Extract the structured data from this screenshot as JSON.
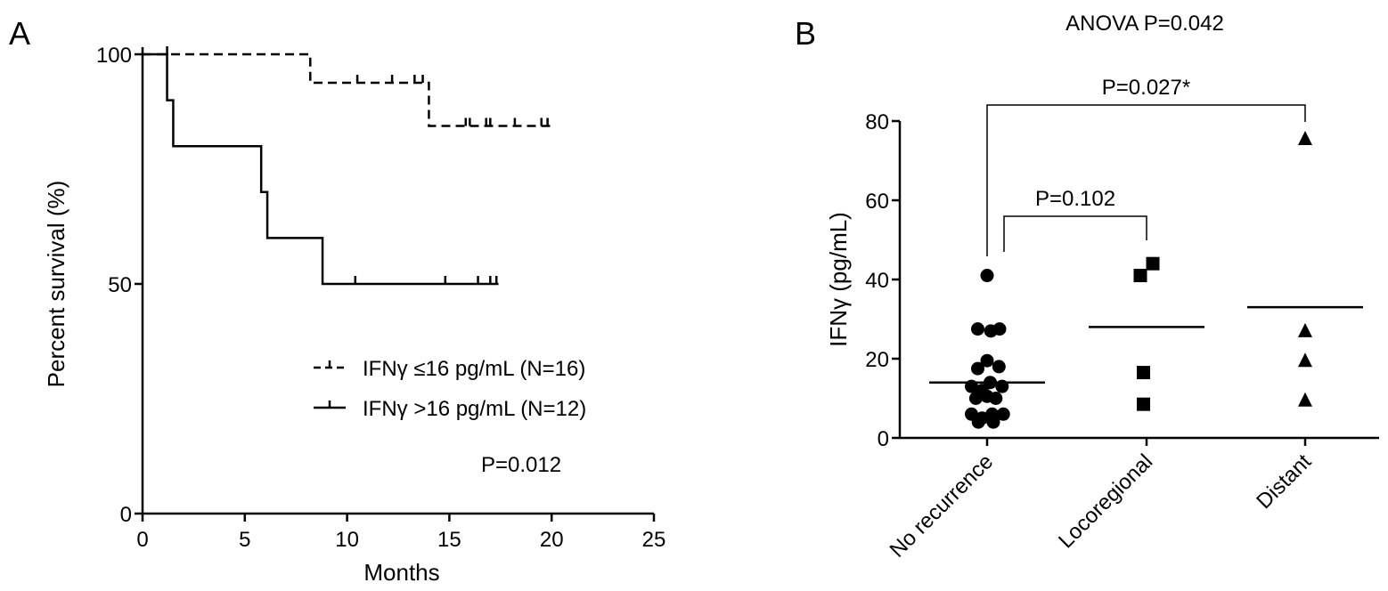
{
  "chart_data": [
    {
      "panel_label": "A",
      "type": "line",
      "xlabel": "Months",
      "ylabel": "Percent survival (%)",
      "xlim": [
        0,
        25
      ],
      "ylim": [
        0,
        100
      ],
      "xticks": [
        "0",
        "5",
        "10",
        "15",
        "20",
        "25"
      ],
      "yticks": [
        "0",
        "50",
        "100"
      ],
      "grid": false,
      "legend_position": "lower-right",
      "annotation": "P=0.012",
      "series": [
        {
          "name": "IFNγ ≤16 pg/mL (N=16)",
          "style": "dashed",
          "steps": [
            [
              0,
              100
            ],
            [
              8.2,
              100
            ],
            [
              8.2,
              93.8
            ],
            [
              14.0,
              93.8
            ],
            [
              14.0,
              84.4
            ],
            [
              20.0,
              84.4
            ]
          ],
          "censored": [
            [
              1.2,
              100
            ],
            [
              10.5,
              93.8
            ],
            [
              12.2,
              93.8
            ],
            [
              13.3,
              93.8
            ],
            [
              13.7,
              93.8
            ],
            [
              15.8,
              84.4
            ],
            [
              16.0,
              84.4
            ],
            [
              16.8,
              84.4
            ],
            [
              17.0,
              84.4
            ],
            [
              18.2,
              84.4
            ],
            [
              19.5,
              84.4
            ],
            [
              19.8,
              84.4
            ]
          ]
        },
        {
          "name": "IFNγ >16 pg/mL (N=12)",
          "style": "solid",
          "steps": [
            [
              0,
              100
            ],
            [
              1.2,
              100
            ],
            [
              1.2,
              90
            ],
            [
              1.5,
              90
            ],
            [
              1.5,
              80
            ],
            [
              5.8,
              80
            ],
            [
              5.8,
              70
            ],
            [
              6.1,
              70
            ],
            [
              6.1,
              60
            ],
            [
              8.8,
              60
            ],
            [
              8.8,
              50
            ],
            [
              17.4,
              50
            ]
          ],
          "censored": [
            [
              10.4,
              50
            ],
            [
              14.8,
              50
            ],
            [
              16.4,
              50
            ],
            [
              17.0,
              50
            ],
            [
              17.3,
              50
            ]
          ]
        }
      ]
    },
    {
      "panel_label": "B",
      "type": "scatter",
      "title": "ANOVA P=0.042",
      "ylabel": "IFNγ (pg/mL)",
      "ylim": [
        0,
        80
      ],
      "yticks": [
        "0",
        "20",
        "40",
        "60",
        "80"
      ],
      "categories": [
        "No recurrence",
        "Locoregional",
        "Distant"
      ],
      "grid": false,
      "groups": [
        {
          "category": "No recurrence",
          "marker": "circle",
          "mean": 14.0,
          "points": [
            [
              0,
              41
            ],
            [
              -0.15,
              27.5
            ],
            [
              0.06,
              27
            ],
            [
              0.2,
              27.5
            ],
            [
              0,
              19.5
            ],
            [
              -0.15,
              17.5
            ],
            [
              0.19,
              18
            ],
            [
              -0.25,
              13
            ],
            [
              0.05,
              14
            ],
            [
              0.24,
              13
            ],
            [
              -0.08,
              12
            ],
            [
              -0.18,
              10
            ],
            [
              0,
              10.5
            ],
            [
              0.14,
              10
            ],
            [
              -0.25,
              6
            ],
            [
              -0.08,
              5
            ],
            [
              0.08,
              6
            ],
            [
              0.26,
              6
            ],
            [
              -0.14,
              4
            ],
            [
              0.1,
              4
            ]
          ]
        },
        {
          "category": "Locoregional",
          "marker": "square",
          "mean": 28.0,
          "points": [
            [
              -0.1,
              41
            ],
            [
              0.1,
              44
            ],
            [
              -0.05,
              16.5
            ],
            [
              -0.05,
              8.5
            ]
          ]
        },
        {
          "category": "Distant",
          "marker": "triangle",
          "mean": 33.0,
          "points": [
            [
              0,
              75.5
            ],
            [
              0,
              27
            ],
            [
              0,
              19.5
            ],
            [
              0,
              9.5
            ]
          ]
        }
      ],
      "comparisons": [
        {
          "from": "No recurrence",
          "to": "Locoregional",
          "label": "P=0.102"
        },
        {
          "from": "No recurrence",
          "to": "Distant",
          "label": "P=0.027*"
        }
      ]
    }
  ]
}
